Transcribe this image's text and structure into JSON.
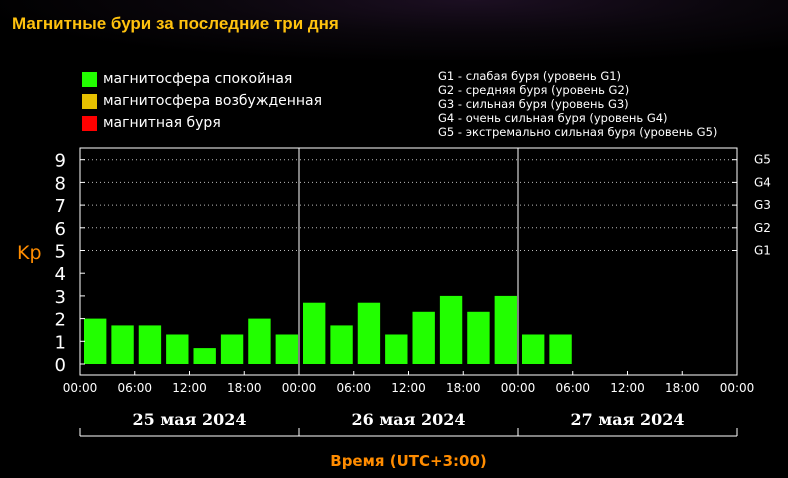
{
  "page": {
    "title": "Магнитные бури за последние три дня"
  },
  "legend": [
    {
      "label": "магнитосфера спокойная",
      "color": "#22ff00"
    },
    {
      "label": "магнитосфера возбужденная",
      "color": "#e6c000"
    },
    {
      "label": "магнитная буря",
      "color": "#ff0000"
    }
  ],
  "storm_levels": [
    "G1 - слабая буря (уровень G1)",
    "G2 - средняя буря (уровень G2)",
    "G3 - сильная буря (уровень G3)",
    "G4 - очень сильная буря (уровень G4)",
    "G5 - экстремально сильная буря (уровень G5)"
  ],
  "chart_data": {
    "type": "bar",
    "ylabel": "Kp",
    "xlabel": "Время (UTC+3:00)",
    "ylim": [
      0,
      9.5
    ],
    "y_ticks": [
      "0",
      "1",
      "2",
      "3",
      "4",
      "5",
      "6",
      "7",
      "8",
      "9"
    ],
    "right_ticks": [
      {
        "label": "G1",
        "y": 5
      },
      {
        "label": "G2",
        "y": 6
      },
      {
        "label": "G3",
        "y": 7
      },
      {
        "label": "G4",
        "y": 8
      },
      {
        "label": "G5",
        "y": 9
      }
    ],
    "grid": "dotted horizontal at 5, 6, 7, 8, 9; vertical day separators",
    "x_ticks": [
      "00:00",
      "06:00",
      "12:00",
      "18:00",
      "00:00",
      "06:00",
      "12:00",
      "18:00",
      "00:00",
      "06:00",
      "12:00",
      "18:00",
      "00:00"
    ],
    "days": [
      "25 мая 2024",
      "26 мая 2024",
      "27 мая 2024"
    ],
    "bar_color": "#22ff00",
    "values": [
      2.0,
      1.7,
      1.7,
      1.3,
      0.7,
      1.3,
      2.0,
      1.3,
      2.7,
      1.7,
      2.7,
      1.3,
      2.3,
      3.0,
      2.3,
      3.0,
      1.3,
      1.3
    ]
  }
}
